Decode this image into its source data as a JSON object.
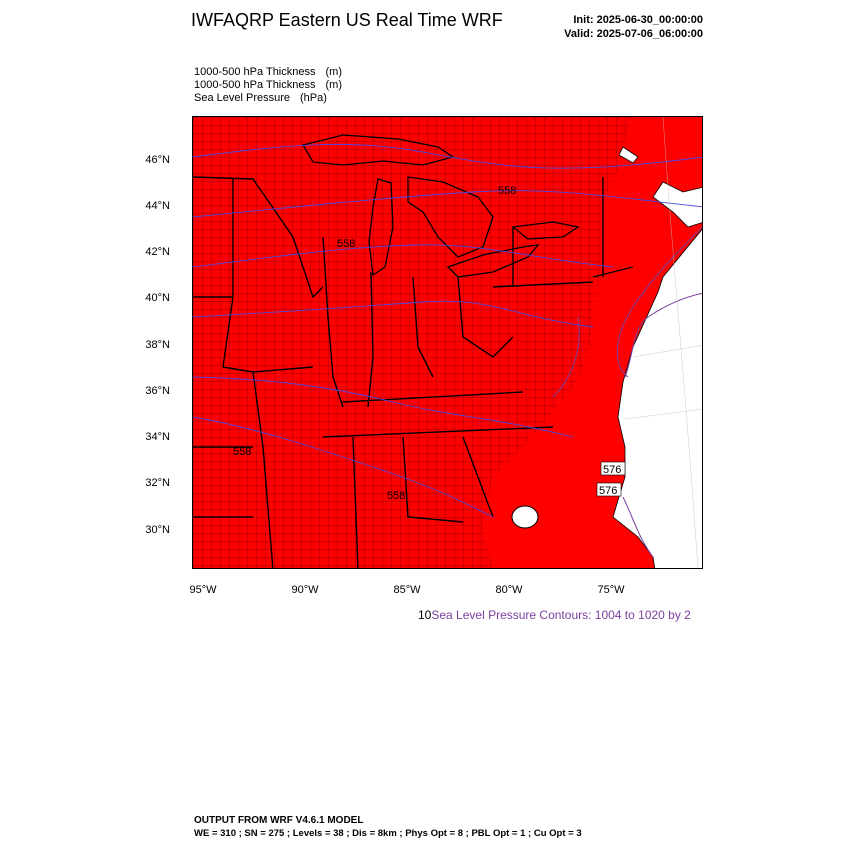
{
  "header": {
    "title": "IWFAQRP Eastern US Real Time WRF",
    "init": "Init: 2025-06-30_00:00:00",
    "valid": "Valid: 2025-07-06_06:00:00"
  },
  "fields": [
    {
      "name": "1000-500 hPa Thickness",
      "unit": "(m)"
    },
    {
      "name": "1000-500 hPa Thickness",
      "unit": "(m)"
    },
    {
      "name": "Sea Level Pressure",
      "unit": "(hPa)"
    }
  ],
  "map": {
    "fill_color": "#ff0000",
    "boundary_color": "#000000",
    "pressure_contour_color": "#7a3fa0",
    "thickness_contour_color": "#4a4adf",
    "lat_labels": [
      "46°N",
      "44°N",
      "42°N",
      "40°N",
      "38°N",
      "36°N",
      "34°N",
      "32°N",
      "30°N"
    ],
    "lon_labels": [
      "95°W",
      "90°W",
      "85°W",
      "80°W",
      "75°W"
    ],
    "contour_labels": [
      "576",
      "576",
      "558",
      "558",
      "558",
      "558"
    ]
  },
  "contour_info": {
    "lead": "10",
    "text": "Sea Level Pressure Contours: 1004 to 1020 by 2"
  },
  "footer": {
    "line1": "OUTPUT FROM WRF V4.6.1 MODEL",
    "line2": "WE = 310 ; SN = 275 ; Levels = 38 ; Dis = 8km ; Phys Opt = 8 ; PBL Opt = 1 ; Cu Opt = 3"
  }
}
